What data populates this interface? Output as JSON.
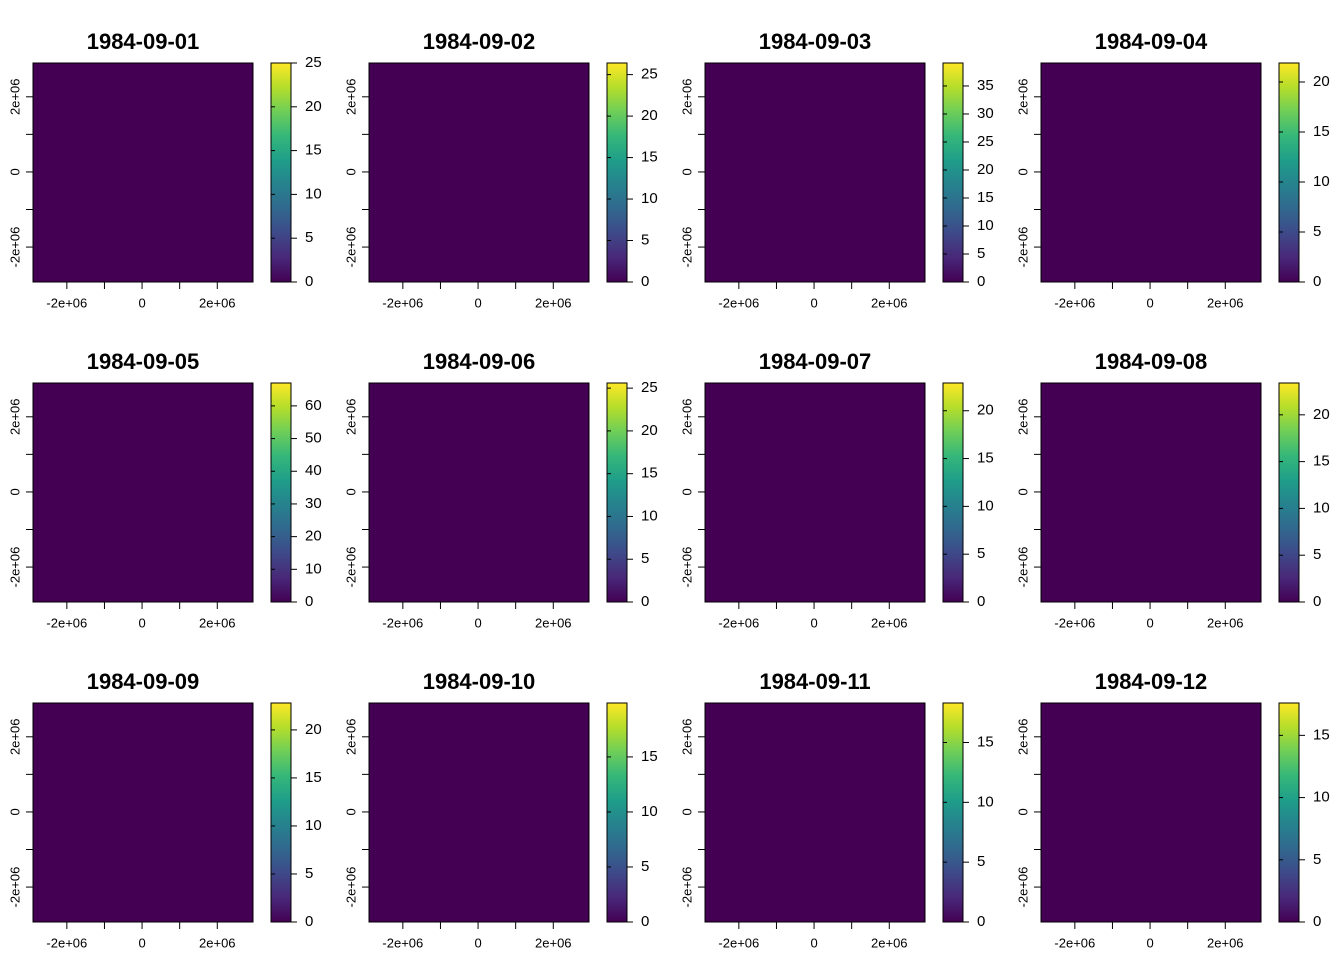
{
  "chart_data": [
    {
      "type": "raster",
      "title": "1984-09-01",
      "colormap": "viridis",
      "xlim": [
        -2900000,
        2950000
      ],
      "ylim": [
        -2930000,
        2900000
      ],
      "xticks": [
        {
          "value": -2000000,
          "label": "-2e+06"
        },
        0,
        {
          "value": 2000000,
          "label": "2e+06"
        }
      ],
      "xminorticks": [
        -1000000,
        1000000
      ],
      "yticks": [
        {
          "value": -2000000,
          "label": "-2e+06"
        },
        0,
        {
          "value": 2000000,
          "label": "2e+06"
        }
      ],
      "yminorticks": [
        -1000000,
        1000000
      ],
      "zlim": [
        0,
        25
      ],
      "zticks": [
        0,
        5,
        10,
        15,
        20,
        25
      ]
    },
    {
      "type": "raster",
      "title": "1984-09-02",
      "colormap": "viridis",
      "xlim": [
        -2900000,
        2950000
      ],
      "ylim": [
        -2930000,
        2900000
      ],
      "xticks": [
        {
          "value": -2000000,
          "label": "-2e+06"
        },
        0,
        {
          "value": 2000000,
          "label": "2e+06"
        }
      ],
      "xminorticks": [
        -1000000,
        1000000
      ],
      "yticks": [
        {
          "value": -2000000,
          "label": "-2e+06"
        },
        0,
        {
          "value": 2000000,
          "label": "2e+06"
        }
      ],
      "yminorticks": [
        -1000000,
        1000000
      ],
      "zlim": [
        0,
        26.4
      ],
      "zticks": [
        0,
        5,
        10,
        15,
        20,
        25
      ]
    },
    {
      "type": "raster",
      "title": "1984-09-03",
      "colormap": "viridis",
      "xlim": [
        -2900000,
        2950000
      ],
      "ylim": [
        -2930000,
        2900000
      ],
      "xticks": [
        {
          "value": -2000000,
          "label": "-2e+06"
        },
        0,
        {
          "value": 2000000,
          "label": "2e+06"
        }
      ],
      "xminorticks": [
        -1000000,
        1000000
      ],
      "yticks": [
        {
          "value": -2000000,
          "label": "-2e+06"
        },
        0,
        {
          "value": 2000000,
          "label": "2e+06"
        }
      ],
      "yminorticks": [
        -1000000,
        1000000
      ],
      "zlim": [
        0,
        39.1
      ],
      "zticks": [
        0,
        5,
        10,
        15,
        20,
        25,
        30,
        35
      ]
    },
    {
      "type": "raster",
      "title": "1984-09-04",
      "colormap": "viridis",
      "xlim": [
        -2900000,
        2950000
      ],
      "ylim": [
        -2930000,
        2900000
      ],
      "xticks": [
        {
          "value": -2000000,
          "label": "-2e+06"
        },
        0,
        {
          "value": 2000000,
          "label": "2e+06"
        }
      ],
      "xminorticks": [
        -1000000,
        1000000
      ],
      "yticks": [
        {
          "value": -2000000,
          "label": "-2e+06"
        },
        0,
        {
          "value": 2000000,
          "label": "2e+06"
        }
      ],
      "yminorticks": [
        -1000000,
        1000000
      ],
      "zlim": [
        0,
        21.9
      ],
      "zticks": [
        0,
        5,
        10,
        15,
        20
      ]
    },
    {
      "type": "raster",
      "title": "1984-09-05",
      "colormap": "viridis",
      "xlim": [
        -2900000,
        2950000
      ],
      "ylim": [
        -2930000,
        2900000
      ],
      "xticks": [
        {
          "value": -2000000,
          "label": "-2e+06"
        },
        0,
        {
          "value": 2000000,
          "label": "2e+06"
        }
      ],
      "xminorticks": [
        -1000000,
        1000000
      ],
      "yticks": [
        {
          "value": -2000000,
          "label": "-2e+06"
        },
        0,
        {
          "value": 2000000,
          "label": "2e+06"
        }
      ],
      "yminorticks": [
        -1000000,
        1000000
      ],
      "zlim": [
        0,
        67
      ],
      "zticks": [
        0,
        10,
        20,
        30,
        40,
        50,
        60
      ]
    },
    {
      "type": "raster",
      "title": "1984-09-06",
      "colormap": "viridis",
      "xlim": [
        -2900000,
        2950000
      ],
      "ylim": [
        -2930000,
        2900000
      ],
      "xticks": [
        {
          "value": -2000000,
          "label": "-2e+06"
        },
        0,
        {
          "value": 2000000,
          "label": "2e+06"
        }
      ],
      "xminorticks": [
        -1000000,
        1000000
      ],
      "yticks": [
        {
          "value": -2000000,
          "label": "-2e+06"
        },
        0,
        {
          "value": 2000000,
          "label": "2e+06"
        }
      ],
      "yminorticks": [
        -1000000,
        1000000
      ],
      "zlim": [
        0,
        25.6
      ],
      "zticks": [
        0,
        5,
        10,
        15,
        20,
        25
      ]
    },
    {
      "type": "raster",
      "title": "1984-09-07",
      "colormap": "viridis",
      "xlim": [
        -2900000,
        2950000
      ],
      "ylim": [
        -2930000,
        2900000
      ],
      "xticks": [
        {
          "value": -2000000,
          "label": "-2e+06"
        },
        0,
        {
          "value": 2000000,
          "label": "2e+06"
        }
      ],
      "xminorticks": [
        -1000000,
        1000000
      ],
      "yticks": [
        {
          "value": -2000000,
          "label": "-2e+06"
        },
        0,
        {
          "value": 2000000,
          "label": "2e+06"
        }
      ],
      "yminorticks": [
        -1000000,
        1000000
      ],
      "zlim": [
        0,
        22.9
      ],
      "zticks": [
        0,
        5,
        10,
        15,
        20
      ]
    },
    {
      "type": "raster",
      "title": "1984-09-08",
      "colormap": "viridis",
      "xlim": [
        -2900000,
        2950000
      ],
      "ylim": [
        -2930000,
        2900000
      ],
      "xticks": [
        {
          "value": -2000000,
          "label": "-2e+06"
        },
        0,
        {
          "value": 2000000,
          "label": "2e+06"
        }
      ],
      "xminorticks": [
        -1000000,
        1000000
      ],
      "yticks": [
        {
          "value": -2000000,
          "label": "-2e+06"
        },
        0,
        {
          "value": 2000000,
          "label": "2e+06"
        }
      ],
      "yminorticks": [
        -1000000,
        1000000
      ],
      "zlim": [
        0,
        23.4
      ],
      "zticks": [
        0,
        5,
        10,
        15,
        20
      ]
    },
    {
      "type": "raster",
      "title": "1984-09-09",
      "colormap": "viridis",
      "xlim": [
        -2900000,
        2950000
      ],
      "ylim": [
        -2930000,
        2900000
      ],
      "xticks": [
        {
          "value": -2000000,
          "label": "-2e+06"
        },
        0,
        {
          "value": 2000000,
          "label": "2e+06"
        }
      ],
      "xminorticks": [
        -1000000,
        1000000
      ],
      "yticks": [
        {
          "value": -2000000,
          "label": "-2e+06"
        },
        0,
        {
          "value": 2000000,
          "label": "2e+06"
        }
      ],
      "yminorticks": [
        -1000000,
        1000000
      ],
      "zlim": [
        0,
        22.8
      ],
      "zticks": [
        0,
        5,
        10,
        15,
        20
      ]
    },
    {
      "type": "raster",
      "title": "1984-09-10",
      "colormap": "viridis",
      "xlim": [
        -2900000,
        2950000
      ],
      "ylim": [
        -2930000,
        2900000
      ],
      "xticks": [
        {
          "value": -2000000,
          "label": "-2e+06"
        },
        0,
        {
          "value": 2000000,
          "label": "2e+06"
        }
      ],
      "xminorticks": [
        -1000000,
        1000000
      ],
      "yticks": [
        {
          "value": -2000000,
          "label": "-2e+06"
        },
        0,
        {
          "value": 2000000,
          "label": "2e+06"
        }
      ],
      "yminorticks": [
        -1000000,
        1000000
      ],
      "zlim": [
        0,
        19.9
      ],
      "zticks": [
        0,
        5,
        10,
        15
      ]
    },
    {
      "type": "raster",
      "title": "1984-09-11",
      "colormap": "viridis",
      "xlim": [
        -2900000,
        2950000
      ],
      "ylim": [
        -2930000,
        2900000
      ],
      "xticks": [
        {
          "value": -2000000,
          "label": "-2e+06"
        },
        0,
        {
          "value": 2000000,
          "label": "2e+06"
        }
      ],
      "xminorticks": [
        -1000000,
        1000000
      ],
      "yticks": [
        {
          "value": -2000000,
          "label": "-2e+06"
        },
        0,
        {
          "value": 2000000,
          "label": "2e+06"
        }
      ],
      "yminorticks": [
        -1000000,
        1000000
      ],
      "zlim": [
        0,
        18.3
      ],
      "zticks": [
        0,
        5,
        10,
        15
      ]
    },
    {
      "type": "raster",
      "title": "1984-09-12",
      "colormap": "viridis",
      "xlim": [
        -2900000,
        2950000
      ],
      "ylim": [
        -2930000,
        2900000
      ],
      "xticks": [
        {
          "value": -2000000,
          "label": "-2e+06"
        },
        0,
        {
          "value": 2000000,
          "label": "2e+06"
        }
      ],
      "xminorticks": [
        -1000000,
        1000000
      ],
      "yticks": [
        {
          "value": -2000000,
          "label": "-2e+06"
        },
        0,
        {
          "value": 2000000,
          "label": "2e+06"
        }
      ],
      "yminorticks": [
        -1000000,
        1000000
      ],
      "zlim": [
        0,
        17.6
      ],
      "zticks": [
        0,
        5,
        10,
        15
      ]
    }
  ]
}
